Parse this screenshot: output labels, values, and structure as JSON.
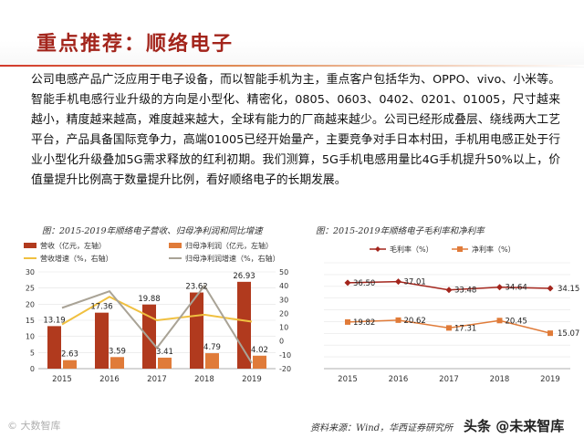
{
  "title": "重点推荐：顺络电子",
  "paragraph": "公司电感产品广泛应用于电子设备，而以智能手机为主，重点客户包括华为、OPPO、vivo、小米等。智能手机电感行业升级的方向是小型化、精密化，0805、0603、0402、0201、01005，尺寸越来越小，精度越来越高，难度越来越大，全球有能力的厂商越来越少。公司已经形成叠层、绕线两大工艺平台，产品具备国际竞争力，高端01005已经开始量产，主要竞争对手日本村田，手机用电感正处于行业小型化升级叠加5G需求释放的红利初期。我们测算，5G手机电感用量比4G手机提升50%以上，价值量提升比例高于数量提升比例，看好顺络电子的长期发展。",
  "captions": {
    "left": "图：2015-2019年顺络电子营收、归母净利润和同比增速",
    "right": "图：2015-2019年顺络电子毛利率和净利率"
  },
  "source": "资料来源：Wind，华西证券研究所",
  "watermarks": {
    "left": "© 大数智库",
    "right": "头条 @未来智库"
  },
  "colors": {
    "title": "#a3251c",
    "revenue_bar": "#b13a1e",
    "profit_bar": "#e07b39",
    "revenue_growth": "#f0c040",
    "profit_growth": "#a9a396",
    "gross_margin": "#a3251c",
    "net_margin": "#e07b39"
  },
  "chart_data": [
    {
      "type": "bar",
      "categories": [
        "2015",
        "2016",
        "2017",
        "2018",
        "2019"
      ],
      "series": [
        {
          "name": "营收（亿元，左轴）",
          "type": "bar",
          "axis": "left",
          "values": [
            13.19,
            17.36,
            19.88,
            23.62,
            26.93
          ],
          "labels": [
            "13.19",
            "17.36",
            "19.88",
            "23.62",
            "26.93"
          ]
        },
        {
          "name": "归母净利润（亿元，左轴）",
          "type": "bar",
          "axis": "left",
          "values": [
            2.63,
            3.59,
            3.41,
            4.79,
            4.02
          ],
          "labels": [
            "2.63",
            "3.59",
            "3.41",
            "4.79",
            "4.02"
          ]
        },
        {
          "name": "营收增速（%，右轴）",
          "type": "line",
          "axis": "right",
          "values": [
            12,
            32,
            15,
            19,
            14
          ]
        },
        {
          "name": "归母净利润增速（%，右轴）",
          "type": "line",
          "axis": "right",
          "values": [
            24,
            36,
            -5,
            40,
            -16
          ]
        }
      ],
      "ylim": [
        0,
        30
      ],
      "yticks": [
        "0",
        "5",
        "10",
        "15",
        "20",
        "25",
        "30"
      ],
      "y2lim": [
        -20,
        50
      ],
      "y2ticks": [
        "-20",
        "-10",
        "0",
        "10",
        "20",
        "30",
        "40",
        "50"
      ],
      "legend": "top"
    },
    {
      "type": "line",
      "categories": [
        "2015",
        "2016",
        "2017",
        "2018",
        "2019"
      ],
      "series": [
        {
          "name": "毛利率（%）",
          "values": [
            36.5,
            37.01,
            33.48,
            34.64,
            34.15
          ],
          "labels": [
            "36.50",
            "37.01",
            "33.48",
            "34.64",
            "34.15"
          ]
        },
        {
          "name": "净利率（%）",
          "values": [
            19.82,
            20.62,
            17.31,
            20.45,
            15.07
          ],
          "labels": [
            "19.82",
            "20.62",
            "17.31",
            "20.45",
            "15.07"
          ]
        }
      ],
      "ylim": [
        0,
        45
      ],
      "legend": "top"
    }
  ]
}
